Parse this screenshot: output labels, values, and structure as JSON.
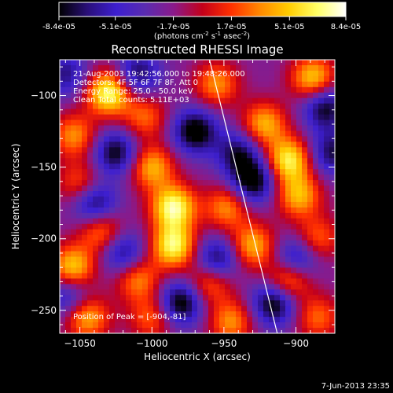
{
  "chart_data": {
    "type": "heatmap",
    "title": "Reconstructed RHESSI Image",
    "xlabel": "Heliocentric X (arcsec)",
    "ylabel": "Heliocentric Y (arcsec)",
    "xlim": [
      -1064,
      -873
    ],
    "ylim": [
      -266,
      -75
    ],
    "xticks": [
      -1050,
      -1000,
      -950,
      -900
    ],
    "yticks": [
      -250,
      -200,
      -150,
      -100
    ],
    "colorbar": {
      "label_main": "(photons cm",
      "sup1": "-2",
      "label_mid": " s",
      "sup2": "-1",
      "label_tail": " asec",
      "sup3": "-2",
      "label_end": ")",
      "min": -8.4e-05,
      "max": 8.4e-05,
      "tick_values": [
        -8.4e-05,
        -5.1e-05,
        -1.7e-05,
        1.7e-05,
        5.1e-05,
        8.4e-05
      ],
      "tick_labels": [
        "-8.4e-05",
        "-5.1e-05",
        "-1.7e-05",
        "1.7e-05",
        "5.1e-05",
        "8.4e-05"
      ],
      "colormap": [
        "#000000",
        "#2a0f7a",
        "#3d1fd0",
        "#5a2cb0",
        "#8a1a8a",
        "#c4001a",
        "#ff3000",
        "#ff8800",
        "#ffcc00",
        "#ffff66",
        "#ffffff"
      ]
    },
    "annotations": [
      "21-Aug-2003 19:42:56.000 to 19:48:26.000",
      "Detectors: 4F 5F 6F 7F 8F, Att 0",
      "Energy Range: 25.0 - 50.0 keV",
      "Clean    Total counts: 5.11E+03"
    ],
    "peak_label": "Position of Peak = [-904,-81]",
    "peak_position": [
      -904,
      -81
    ],
    "limb_line": [
      [
        -960,
        -75
      ],
      [
        -913,
        -266
      ]
    ],
    "sources": [
      {
        "x": -1030,
        "y": -98,
        "amp": 1.0
      },
      {
        "x": -1005,
        "y": -115,
        "amp": 0.5
      },
      {
        "x": -955,
        "y": -92,
        "amp": 0.6
      },
      {
        "x": -922,
        "y": -120,
        "amp": 0.7
      },
      {
        "x": -888,
        "y": -88,
        "amp": 0.8
      },
      {
        "x": -1054,
        "y": -128,
        "amp": 0.6
      },
      {
        "x": -1000,
        "y": -150,
        "amp": 0.7
      },
      {
        "x": -905,
        "y": -145,
        "amp": 0.9
      },
      {
        "x": -1050,
        "y": -162,
        "amp": 0.5
      },
      {
        "x": -985,
        "y": -178,
        "amp": 1.0
      },
      {
        "x": -948,
        "y": -178,
        "amp": 0.6
      },
      {
        "x": -898,
        "y": -170,
        "amp": 0.7
      },
      {
        "x": -1035,
        "y": -195,
        "amp": 0.6
      },
      {
        "x": -985,
        "y": -205,
        "amp": 0.95
      },
      {
        "x": -930,
        "y": -205,
        "amp": 0.7
      },
      {
        "x": -885,
        "y": -200,
        "amp": 0.5
      },
      {
        "x": -1055,
        "y": -220,
        "amp": 0.8
      },
      {
        "x": -1010,
        "y": -228,
        "amp": 0.6
      },
      {
        "x": -960,
        "y": -230,
        "amp": 0.6
      },
      {
        "x": -905,
        "y": -228,
        "amp": 0.8
      },
      {
        "x": -1045,
        "y": -255,
        "amp": 0.7
      },
      {
        "x": -1000,
        "y": -255,
        "amp": 0.5
      },
      {
        "x": -945,
        "y": -258,
        "amp": 0.6
      },
      {
        "x": -885,
        "y": -255,
        "amp": 0.5
      },
      {
        "x": -1025,
        "y": -140,
        "amp": -0.7
      },
      {
        "x": -970,
        "y": -125,
        "amp": -0.8
      },
      {
        "x": -940,
        "y": -140,
        "amp": -0.6
      },
      {
        "x": -1040,
        "y": -175,
        "amp": -0.7
      },
      {
        "x": -930,
        "y": -160,
        "amp": -0.8
      },
      {
        "x": -1020,
        "y": -210,
        "amp": -0.6
      },
      {
        "x": -955,
        "y": -215,
        "amp": -0.7
      },
      {
        "x": -900,
        "y": -215,
        "amp": -0.7
      },
      {
        "x": -980,
        "y": -245,
        "amp": -0.8
      },
      {
        "x": -915,
        "y": -245,
        "amp": -0.8
      },
      {
        "x": -1058,
        "y": -240,
        "amp": -0.5
      },
      {
        "x": -880,
        "y": -108,
        "amp": -0.7
      },
      {
        "x": -875,
        "y": -140,
        "amp": -0.6
      },
      {
        "x": -1010,
        "y": -85,
        "amp": -0.6
      },
      {
        "x": -1060,
        "y": -85,
        "amp": -0.5
      }
    ]
  },
  "footer": {
    "timestamp": "7-Jun-2013 23:35"
  }
}
